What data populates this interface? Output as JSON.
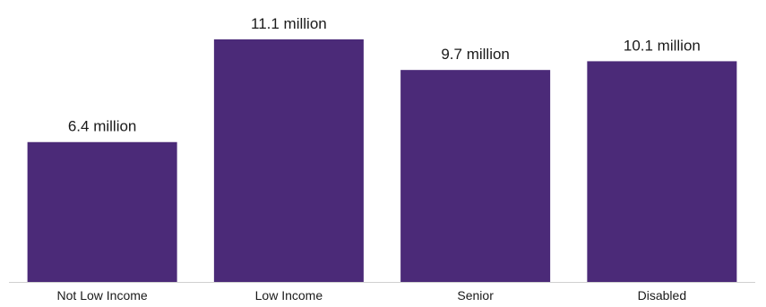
{
  "chart_data": {
    "type": "bar",
    "categories": [
      "Not Low Income",
      "Low Income",
      "Senior",
      "Disabled"
    ],
    "values": [
      6.4,
      11.1,
      9.7,
      10.1
    ],
    "data_labels": [
      "6.4 million",
      "11.1 million",
      "9.7 million",
      "10.1 million"
    ],
    "bar_color": "#4b2a78",
    "ylim": [
      0,
      11.1
    ],
    "grid": false,
    "legend": "none"
  }
}
